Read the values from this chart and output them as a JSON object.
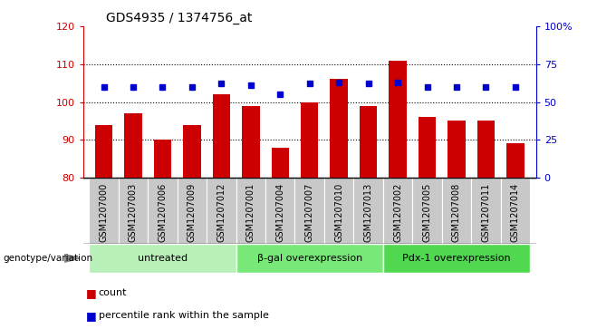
{
  "title": "GDS4935 / 1374756_at",
  "samples": [
    "GSM1207000",
    "GSM1207003",
    "GSM1207006",
    "GSM1207009",
    "GSM1207012",
    "GSM1207001",
    "GSM1207004",
    "GSM1207007",
    "GSM1207010",
    "GSM1207013",
    "GSM1207002",
    "GSM1207005",
    "GSM1207008",
    "GSM1207011",
    "GSM1207014"
  ],
  "counts": [
    94,
    97,
    90,
    94,
    102,
    99,
    88,
    100,
    106,
    99,
    111,
    96,
    95,
    95,
    89
  ],
  "percentiles": [
    60,
    60,
    60,
    60,
    62,
    61,
    55,
    62,
    63,
    62,
    63,
    60,
    60,
    60,
    60
  ],
  "groups": [
    {
      "label": "untreated",
      "start": 0,
      "end": 5,
      "color": "#b8f0b8"
    },
    {
      "label": "β-gal overexpression",
      "start": 5,
      "end": 10,
      "color": "#78e878"
    },
    {
      "label": "Pdx-1 overexpression",
      "start": 10,
      "end": 15,
      "color": "#50d850"
    }
  ],
  "ylim_left": [
    80,
    120
  ],
  "ylim_right": [
    0,
    100
  ],
  "right_ticks": [
    0,
    25,
    50,
    75,
    100
  ],
  "right_tick_labels": [
    "0",
    "25",
    "50",
    "75",
    "100%"
  ],
  "left_ticks": [
    80,
    90,
    100,
    110,
    120
  ],
  "bar_color": "#cc0000",
  "dot_color": "#0000cc",
  "bar_width": 0.6,
  "tick_bg_color": "#c8c8c8",
  "legend_count_color": "#cc0000",
  "legend_dot_color": "#0000cc"
}
